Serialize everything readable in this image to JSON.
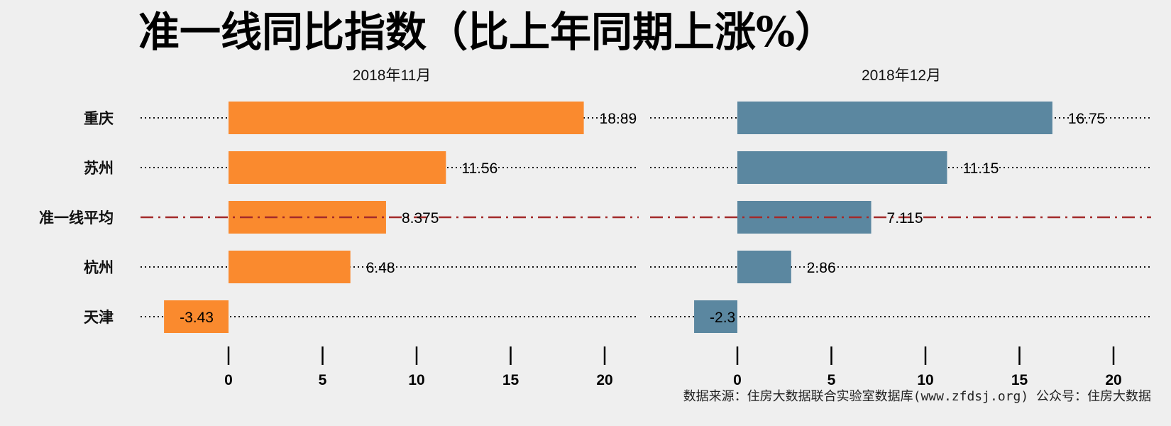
{
  "title": "准一线同比指数（比上年同期上涨%）",
  "source": "数据来源：住房大数据联合实验室数据库(www.zfdsj.org) 公众号：住房大数据",
  "colors": {
    "background": "#efefef",
    "panel1_bar": "#fa8a2e",
    "panel2_bar": "#5b87a0",
    "average_line": "#a32a2a"
  },
  "chart_data": [
    {
      "type": "bar",
      "orientation": "horizontal",
      "title": "2018年11月",
      "categories": [
        "重庆",
        "苏州",
        "准一线平均",
        "杭州",
        "天津"
      ],
      "values": [
        18.89,
        11.56,
        8.375,
        6.48,
        -3.43
      ],
      "value_labels": [
        "18.89",
        "11.56",
        "8.375",
        "6.48",
        "-3.43"
      ],
      "average_category": "准一线平均",
      "xlim": [
        -3.43,
        21.5
      ],
      "xticks": [
        "0",
        "5",
        "10",
        "15",
        "20"
      ],
      "grid": "dotted",
      "color": "#fa8a2e"
    },
    {
      "type": "bar",
      "orientation": "horizontal",
      "title": "2018年12月",
      "categories": [
        "重庆",
        "苏州",
        "准一线平均",
        "杭州",
        "天津"
      ],
      "values": [
        16.75,
        11.15,
        7.115,
        2.86,
        -2.3
      ],
      "value_labels": [
        "16.75",
        "11.15",
        "7.115",
        "2.86",
        "-2.3"
      ],
      "average_category": "准一线平均",
      "xlim": [
        -2.3,
        21.5
      ],
      "xticks": [
        "0",
        "5",
        "10",
        "15",
        "20"
      ],
      "grid": "dotted",
      "color": "#5b87a0"
    }
  ]
}
